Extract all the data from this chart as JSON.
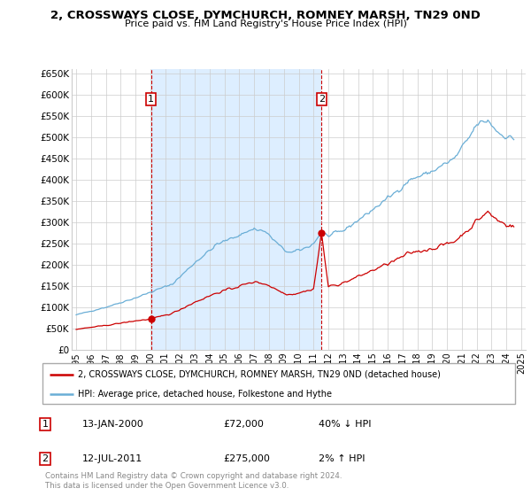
{
  "title": "2, CROSSWAYS CLOSE, DYMCHURCH, ROMNEY MARSH, TN29 0ND",
  "subtitle": "Price paid vs. HM Land Registry's House Price Index (HPI)",
  "ylabel_ticks": [
    "£0",
    "£50K",
    "£100K",
    "£150K",
    "£200K",
    "£250K",
    "£300K",
    "£350K",
    "£400K",
    "£450K",
    "£500K",
    "£550K",
    "£600K",
    "£650K"
  ],
  "ytick_values": [
    0,
    50000,
    100000,
    150000,
    200000,
    250000,
    300000,
    350000,
    400000,
    450000,
    500000,
    550000,
    600000,
    650000
  ],
  "xlim_start": 1994.7,
  "xlim_end": 2025.3,
  "ylim_min": 0,
  "ylim_max": 660000,
  "legend_line1": "2, CROSSWAYS CLOSE, DYMCHURCH, ROMNEY MARSH, TN29 0ND (detached house)",
  "legend_line2": "HPI: Average price, detached house, Folkestone and Hythe",
  "sale1_label": "1",
  "sale1_date": "13-JAN-2000",
  "sale1_price": "£72,000",
  "sale1_hpi": "40% ↓ HPI",
  "sale1_year": 2000.04,
  "sale1_value": 72000,
  "sale2_label": "2",
  "sale2_date": "12-JUL-2011",
  "sale2_price": "£275,000",
  "sale2_hpi": "2% ↑ HPI",
  "sale2_year": 2011.54,
  "sale2_value": 275000,
  "red_color": "#cc0000",
  "blue_color": "#6aaed6",
  "shade_color": "#ddeeff",
  "grid_color": "#cccccc",
  "bg_color": "#ffffff",
  "footer_text": "Contains HM Land Registry data © Crown copyright and database right 2024.\nThis data is licensed under the Open Government Licence v3.0.",
  "xtick_years": [
    1995,
    1996,
    1997,
    1998,
    1999,
    2000,
    2001,
    2002,
    2003,
    2004,
    2005,
    2006,
    2007,
    2008,
    2009,
    2010,
    2011,
    2012,
    2013,
    2014,
    2015,
    2016,
    2017,
    2018,
    2019,
    2020,
    2021,
    2022,
    2023,
    2024,
    2025
  ]
}
